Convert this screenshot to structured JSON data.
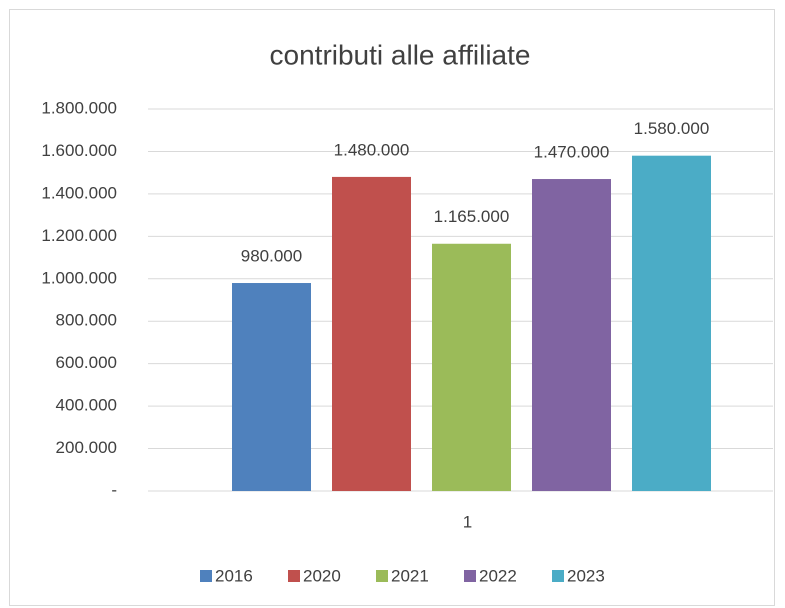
{
  "chart_data": {
    "type": "bar",
    "title": "contributi alle affiliate",
    "categories": [
      "1"
    ],
    "series": [
      {
        "name": "2016",
        "color": "#4f81bd",
        "values": [
          980000
        ],
        "value_labels": [
          "980.000"
        ]
      },
      {
        "name": "2020",
        "color": "#c0504d",
        "values": [
          1480000
        ],
        "value_labels": [
          "1.480.000"
        ]
      },
      {
        "name": "2021",
        "color": "#9bbb59",
        "values": [
          1165000
        ],
        "value_labels": [
          "1.165.000"
        ]
      },
      {
        "name": "2022",
        "color": "#8064a2",
        "values": [
          1470000
        ],
        "value_labels": [
          "1.470.000"
        ]
      },
      {
        "name": "2023",
        "color": "#4bacc6",
        "values": [
          1580000
        ],
        "value_labels": [
          "1.580.000"
        ]
      }
    ],
    "ylim": [
      0,
      1800000
    ],
    "yticks": [
      {
        "value": 0,
        "label": "-"
      },
      {
        "value": 200000,
        "label": "200.000"
      },
      {
        "value": 400000,
        "label": "400.000"
      },
      {
        "value": 600000,
        "label": "600.000"
      },
      {
        "value": 800000,
        "label": "800.000"
      },
      {
        "value": 1000000,
        "label": "1.000.000"
      },
      {
        "value": 1200000,
        "label": "1.200.000"
      },
      {
        "value": 1400000,
        "label": "1.400.000"
      },
      {
        "value": 1600000,
        "label": "1.600.000"
      },
      {
        "value": 1800000,
        "label": "1.800.000"
      }
    ],
    "grid": true,
    "legend": "bottom"
  }
}
